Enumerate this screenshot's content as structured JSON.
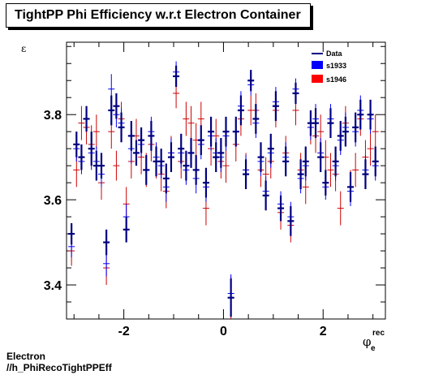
{
  "title": "TightPP Phi Efficiency w.r.t Electron Container",
  "footer": {
    "line1": "Electron",
    "line2": "//h_PhiRecoTightPPEff"
  },
  "colors": {
    "data": "#000080",
    "s1933": "#0000ff",
    "s1946": "#ff0000",
    "s1946_points": "#cc0000"
  },
  "chart_data": {
    "type": "scatter",
    "title": "TightPP Phi Efficiency w.r.t Electron Container",
    "xlabel": "φ",
    "xlabel_sub": "e",
    "xlabel_sup": "rec",
    "ylabel": "ε",
    "xlim": [
      -3.15,
      3.25
    ],
    "ylim": [
      3.32,
      3.97
    ],
    "x_ticks": [
      -2,
      0,
      2
    ],
    "x_tick_labels": [
      "-2",
      "0",
      "2"
    ],
    "y_ticks": [
      3.4,
      3.6,
      3.8
    ],
    "y_tick_labels": [
      "3.4",
      "3.6",
      "3.8"
    ],
    "legend": {
      "position": "top-right",
      "entries": [
        "Data",
        "s1933",
        "s1946"
      ]
    },
    "series": [
      {
        "name": "Data",
        "x": [
          -3.05,
          -2.95,
          -2.85,
          -2.75,
          -2.65,
          -2.55,
          -2.45,
          -2.35,
          -2.25,
          -2.15,
          -2.05,
          -1.95,
          -1.85,
          -1.75,
          -1.65,
          -1.55,
          -1.45,
          -1.35,
          -1.25,
          -1.15,
          -1.05,
          -0.95,
          -0.85,
          -0.75,
          -0.65,
          -0.55,
          -0.45,
          -0.35,
          -0.25,
          -0.15,
          -0.05,
          0.05,
          0.15,
          0.25,
          0.35,
          0.45,
          0.55,
          0.65,
          0.75,
          0.85,
          0.95,
          1.05,
          1.15,
          1.25,
          1.35,
          1.45,
          1.55,
          1.65,
          1.75,
          1.85,
          1.95,
          2.05,
          2.15,
          2.25,
          2.35,
          2.45,
          2.55,
          2.65,
          2.75,
          2.85,
          2.95,
          3.05
        ],
        "y": [
          3.52,
          3.73,
          3.7,
          3.79,
          3.72,
          3.68,
          3.68,
          3.5,
          3.81,
          3.82,
          3.77,
          3.53,
          3.75,
          3.71,
          3.74,
          3.67,
          3.75,
          3.69,
          3.69,
          3.65,
          3.7,
          3.89,
          3.72,
          3.68,
          3.71,
          3.67,
          3.74,
          3.64,
          3.76,
          3.7,
          3.71,
          3.76,
          3.37,
          3.76,
          3.81,
          3.66,
          3.88,
          3.79,
          3.7,
          3.61,
          3.72,
          3.82,
          3.58,
          3.69,
          3.55,
          3.85,
          3.66,
          3.69,
          3.78,
          3.78,
          3.7,
          3.64,
          3.78,
          3.69,
          3.75,
          3.76,
          3.63,
          3.77,
          3.8,
          3.66,
          3.8,
          3.69
        ],
        "yerr": [
          0.025,
          0.03,
          0.03,
          0.03,
          0.04,
          0.035,
          0.03,
          0.03,
          0.035,
          0.03,
          0.035,
          0.03,
          0.035,
          0.03,
          0.03,
          0.035,
          0.035,
          0.035,
          0.03,
          0.035,
          0.035,
          0.025,
          0.035,
          0.035,
          0.035,
          0.035,
          0.035,
          0.035,
          0.035,
          0.035,
          0.035,
          0.035,
          0.045,
          0.035,
          0.035,
          0.035,
          0.025,
          0.035,
          0.035,
          0.035,
          0.035,
          0.035,
          0.03,
          0.035,
          0.035,
          0.025,
          0.035,
          0.035,
          0.03,
          0.035,
          0.035,
          0.03,
          0.035,
          0.035,
          0.035,
          0.035,
          0.035,
          0.035,
          0.035,
          0.035,
          0.035,
          0.035
        ]
      },
      {
        "name": "s1933",
        "x": [
          -3.05,
          -2.95,
          -2.85,
          -2.75,
          -2.65,
          -2.55,
          -2.45,
          -2.35,
          -2.25,
          -2.15,
          -2.05,
          -1.95,
          -1.85,
          -1.75,
          -1.65,
          -1.55,
          -1.45,
          -1.35,
          -1.25,
          -1.15,
          -1.05,
          -0.95,
          -0.85,
          -0.75,
          -0.65,
          -0.55,
          -0.45,
          -0.35,
          -0.25,
          -0.15,
          -0.05,
          0.05,
          0.15,
          0.25,
          0.35,
          0.45,
          0.55,
          0.65,
          0.75,
          0.85,
          0.95,
          1.05,
          1.15,
          1.25,
          1.35,
          1.45,
          1.55,
          1.65,
          1.75,
          1.85,
          1.95,
          2.05,
          2.15,
          2.25,
          2.35,
          2.45,
          2.55,
          2.65,
          2.75,
          2.85,
          2.95,
          3.05
        ],
        "y": [
          3.49,
          3.72,
          3.69,
          3.79,
          3.71,
          3.69,
          3.66,
          3.45,
          3.86,
          3.8,
          3.78,
          3.56,
          3.72,
          3.71,
          3.73,
          3.67,
          3.76,
          3.7,
          3.68,
          3.63,
          3.71,
          3.9,
          3.71,
          3.67,
          3.71,
          3.65,
          3.73,
          3.63,
          3.75,
          3.71,
          3.7,
          3.75,
          3.38,
          3.76,
          3.82,
          3.67,
          3.87,
          3.78,
          3.69,
          3.62,
          3.71,
          3.83,
          3.59,
          3.7,
          3.56,
          3.86,
          3.65,
          3.68,
          3.77,
          3.79,
          3.71,
          3.63,
          3.79,
          3.68,
          3.74,
          3.77,
          3.62,
          3.76,
          3.81,
          3.67,
          3.79,
          3.68
        ],
        "yerr": [
          0.025,
          0.03,
          0.03,
          0.03,
          0.04,
          0.035,
          0.03,
          0.03,
          0.035,
          0.03,
          0.035,
          0.03,
          0.035,
          0.03,
          0.03,
          0.035,
          0.035,
          0.035,
          0.03,
          0.035,
          0.035,
          0.025,
          0.035,
          0.035,
          0.035,
          0.035,
          0.035,
          0.035,
          0.035,
          0.035,
          0.035,
          0.035,
          0.045,
          0.035,
          0.035,
          0.035,
          0.025,
          0.035,
          0.035,
          0.035,
          0.035,
          0.035,
          0.03,
          0.035,
          0.035,
          0.025,
          0.035,
          0.035,
          0.03,
          0.035,
          0.035,
          0.03,
          0.035,
          0.035,
          0.035,
          0.035,
          0.035,
          0.035,
          0.035,
          0.035,
          0.035,
          0.035
        ]
      },
      {
        "name": "s1946",
        "x": [
          -3.05,
          -2.95,
          -2.85,
          -2.75,
          -2.65,
          -2.55,
          -2.45,
          -2.35,
          -2.25,
          -2.15,
          -2.05,
          -1.95,
          -1.85,
          -1.75,
          -1.65,
          -1.55,
          -1.45,
          -1.35,
          -1.25,
          -1.15,
          -1.05,
          -0.95,
          -0.85,
          -0.75,
          -0.65,
          -0.55,
          -0.45,
          -0.35,
          -0.25,
          -0.15,
          -0.05,
          0.05,
          0.15,
          0.25,
          0.35,
          0.45,
          0.55,
          0.65,
          0.75,
          0.85,
          0.95,
          1.05,
          1.15,
          1.25,
          1.35,
          1.45,
          1.55,
          1.65,
          1.75,
          1.85,
          1.95,
          2.05,
          2.15,
          2.25,
          2.35,
          2.45,
          2.55,
          2.65,
          2.75,
          2.85,
          2.95,
          3.05
        ],
        "y": [
          3.48,
          3.67,
          3.78,
          3.77,
          3.73,
          3.76,
          3.64,
          3.44,
          3.76,
          3.68,
          3.79,
          3.59,
          3.69,
          3.75,
          3.7,
          3.67,
          3.73,
          3.69,
          3.66,
          3.62,
          3.71,
          3.85,
          3.69,
          3.79,
          3.78,
          3.74,
          3.79,
          3.58,
          3.72,
          3.75,
          3.69,
          3.68,
          3.37,
          3.73,
          3.79,
          3.67,
          3.81,
          3.81,
          3.67,
          3.66,
          3.69,
          3.81,
          3.57,
          3.71,
          3.54,
          3.81,
          3.67,
          3.63,
          3.77,
          3.75,
          3.76,
          3.7,
          3.67,
          3.66,
          3.58,
          3.78,
          3.63,
          3.67,
          3.79,
          3.7,
          3.72,
          3.76
        ],
        "yerr": [
          0.035,
          0.04,
          0.04,
          0.04,
          0.045,
          0.04,
          0.04,
          0.04,
          0.04,
          0.035,
          0.04,
          0.04,
          0.04,
          0.04,
          0.04,
          0.04,
          0.04,
          0.04,
          0.04,
          0.04,
          0.04,
          0.035,
          0.04,
          0.04,
          0.04,
          0.04,
          0.04,
          0.04,
          0.04,
          0.04,
          0.04,
          0.04,
          0.05,
          0.04,
          0.04,
          0.04,
          0.035,
          0.04,
          0.04,
          0.04,
          0.04,
          0.04,
          0.04,
          0.04,
          0.04,
          0.035,
          0.04,
          0.04,
          0.04,
          0.04,
          0.04,
          0.04,
          0.04,
          0.04,
          0.04,
          0.04,
          0.04,
          0.04,
          0.04,
          0.04,
          0.04,
          0.04
        ]
      }
    ]
  }
}
